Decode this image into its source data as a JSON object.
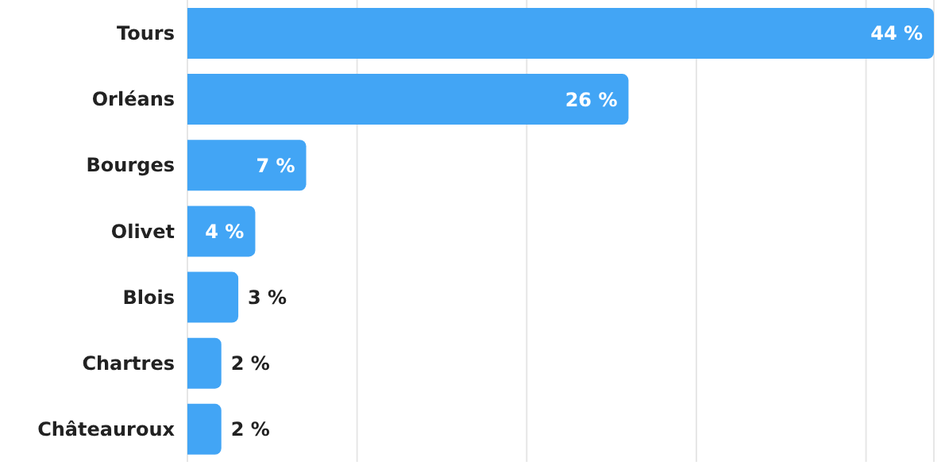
{
  "chart_data": {
    "type": "bar",
    "orientation": "horizontal",
    "categories": [
      "Tours",
      "Orléans",
      "Bourges",
      "Olivet",
      "Blois",
      "Chartres",
      "Châteauroux"
    ],
    "values": [
      44,
      26,
      7,
      4,
      3,
      2,
      2
    ],
    "value_labels": [
      "44 %",
      "26 %",
      "7 %",
      "4 %",
      "3 %",
      "2 %",
      "2 %"
    ],
    "color": "#42a5f5",
    "xlim": [
      0,
      44
    ],
    "xticks": [
      {
        "value": 0,
        "label": null
      },
      {
        "value": 10,
        "label": null
      },
      {
        "value": 20,
        "label": null
      },
      {
        "value": 30,
        "label": null
      },
      {
        "value": 40,
        "label": null
      }
    ],
    "grid": "x",
    "tick_labels": "y",
    "legend": false
  }
}
